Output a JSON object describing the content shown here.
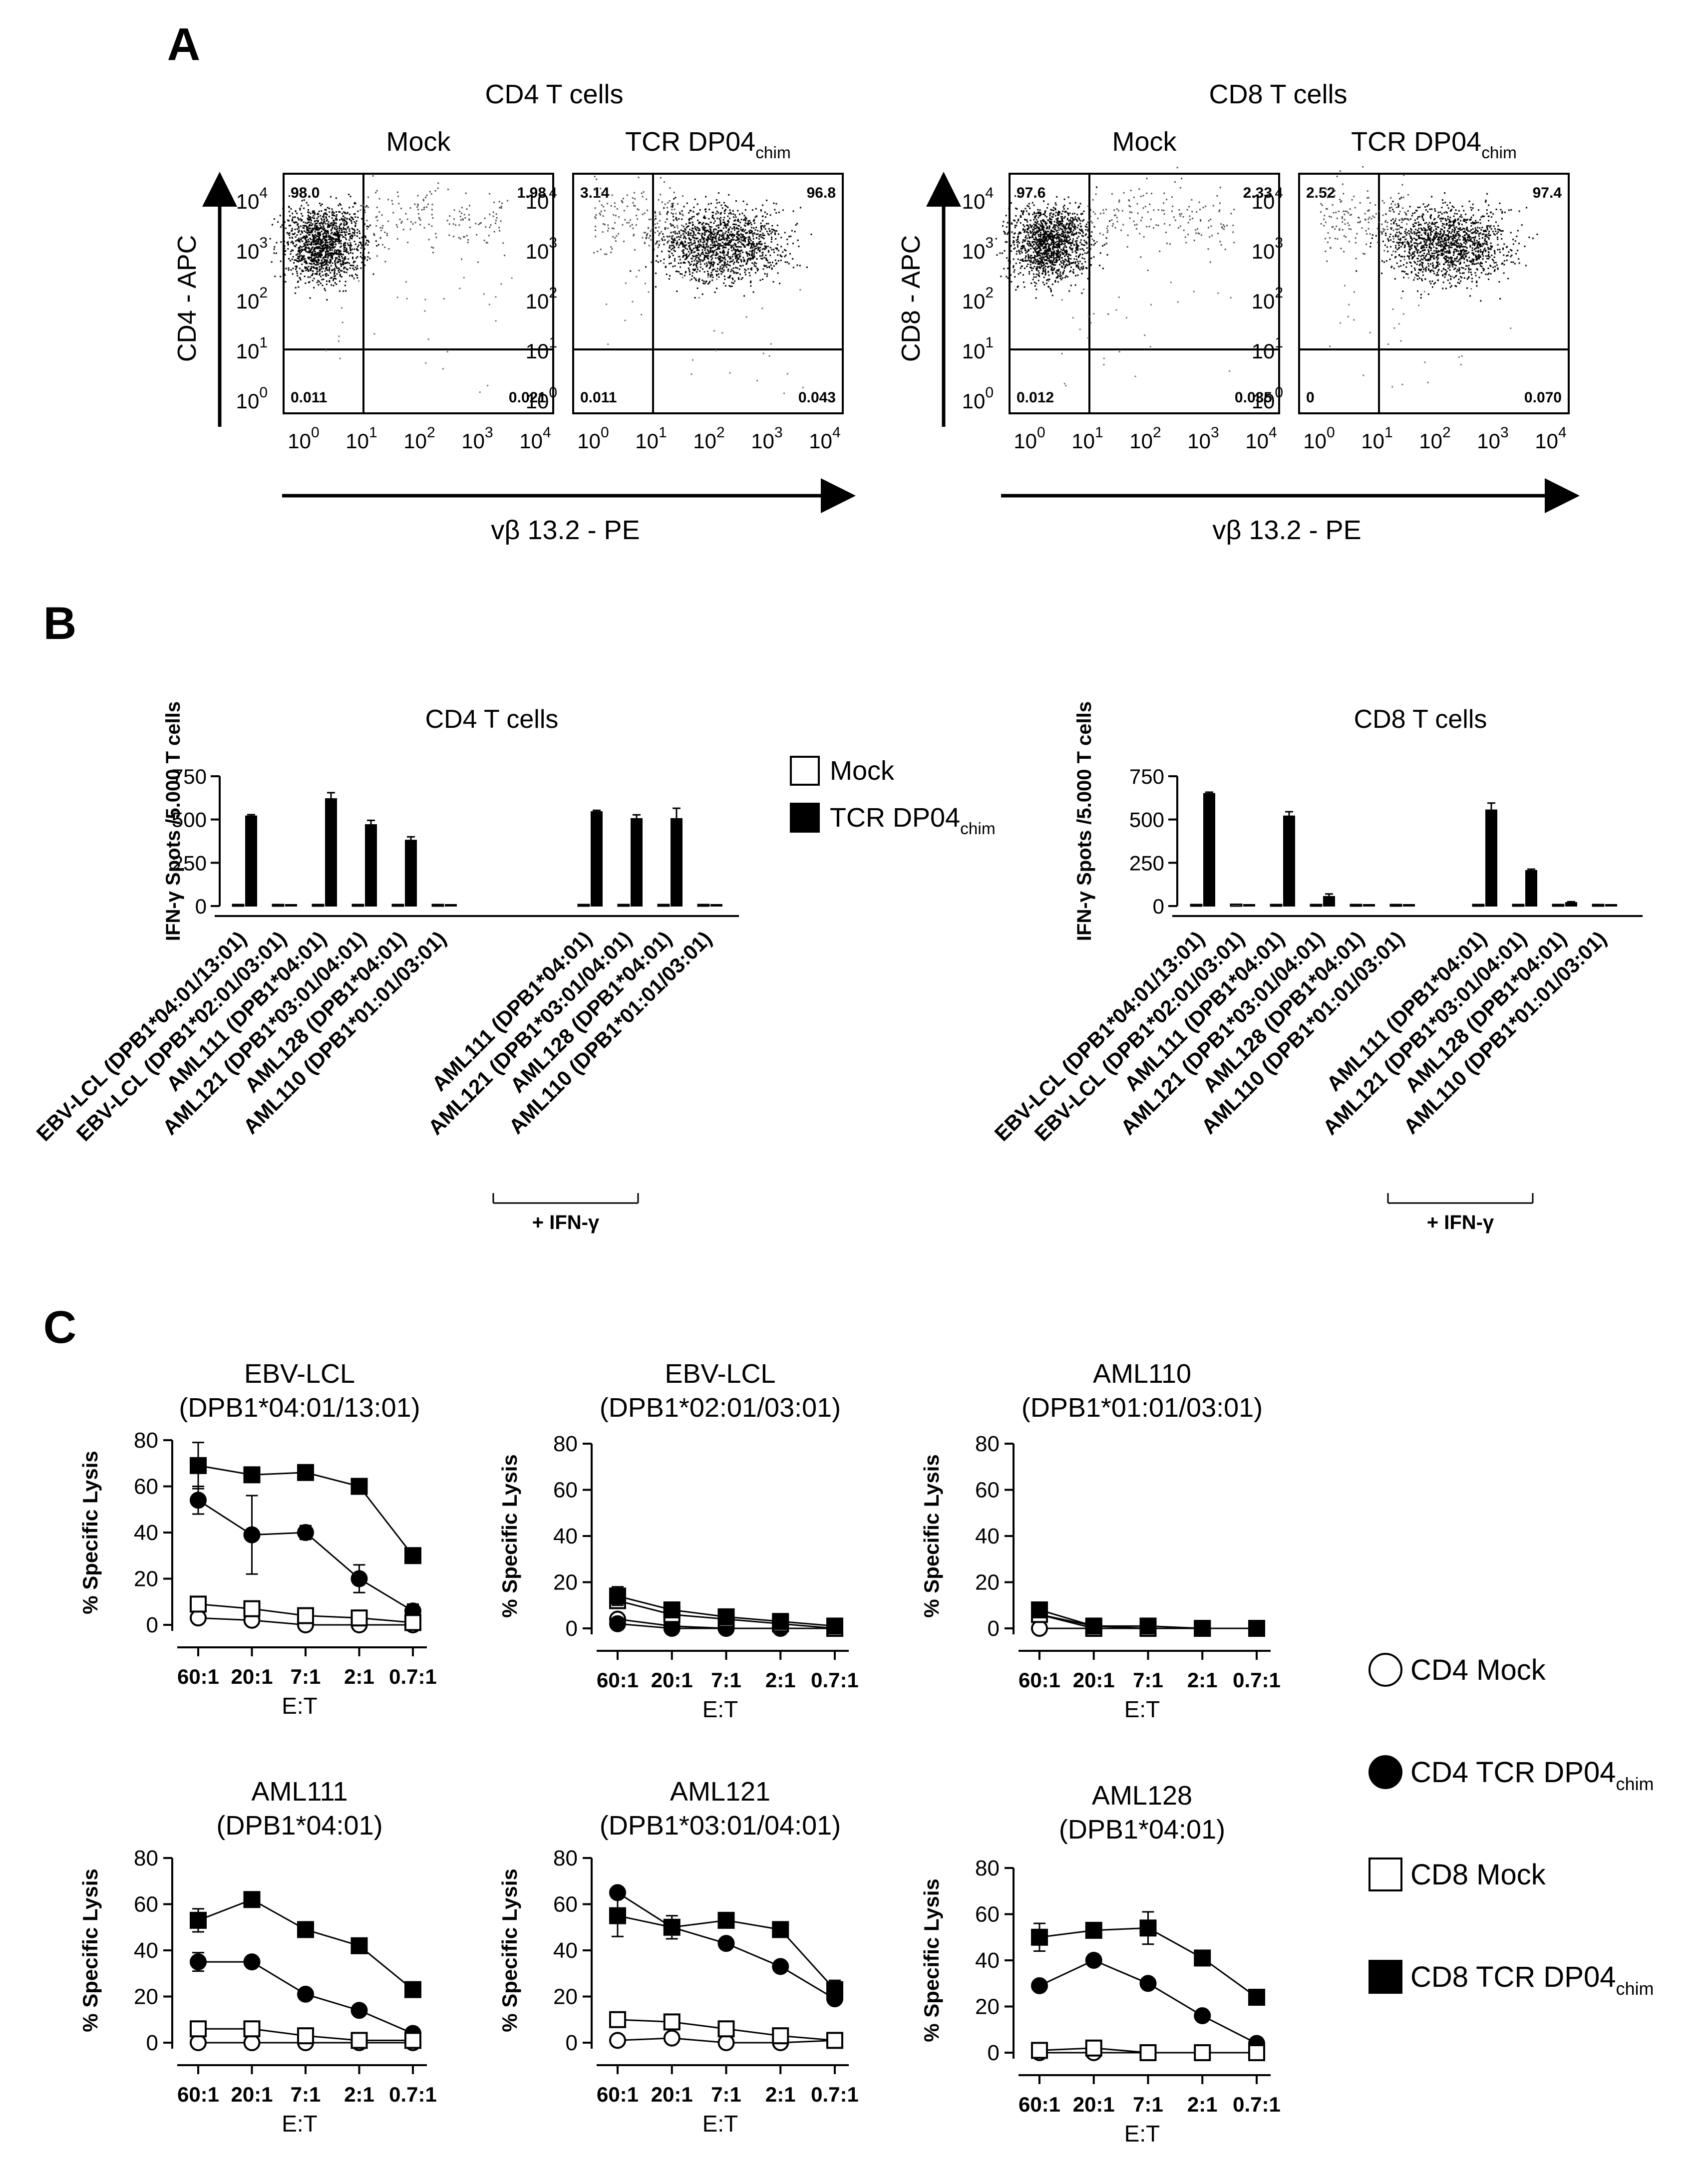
{
  "panels": {
    "A": {
      "label": "A",
      "groups": [
        {
          "title": "CD4 T cells",
          "ylabel": "CD4 - APC",
          "xlabel": "vβ 13.2 - PE",
          "plots": [
            {
              "title": "Mock",
              "sub": "",
              "q": [
                "98.0",
                "1.98",
                "0.011",
                "0.021"
              ],
              "cluster": "left"
            },
            {
              "title": "TCR  DP04",
              "sub": "chim",
              "q": [
                "3.14",
                "96.8",
                "0.011",
                "0.043"
              ],
              "cluster": "right"
            }
          ]
        },
        {
          "title": "CD8 T cells",
          "ylabel": "CD8 - APC",
          "xlabel": "vβ 13.2 - PE",
          "plots": [
            {
              "title": "Mock",
              "sub": "",
              "q": [
                "97.6",
                "2.33",
                "0.012",
                "0.035"
              ],
              "cluster": "left"
            },
            {
              "title": "TCR  DP04",
              "sub": "chim",
              "q": [
                "2.52",
                "97.4",
                "0",
                "0.070"
              ],
              "cluster": "right"
            }
          ]
        }
      ],
      "yticks": [
        "10",
        "10",
        "10",
        "10",
        "10"
      ],
      "yexps": [
        "4",
        "3",
        "2",
        "1",
        "0"
      ],
      "xticks": [
        "10",
        "10",
        "10",
        "10",
        "10"
      ],
      "xexps": [
        "0",
        "1",
        "2",
        "3",
        "4"
      ]
    },
    "B": {
      "label": "B",
      "legend": {
        "mock": "Mock",
        "tcr": "TCR  DP04",
        "tcr_sub": "chim"
      },
      "bracket_label": "+ IFN-γ"
    },
    "C": {
      "label": "C",
      "legend": [
        {
          "text": "CD4 Mock",
          "sub": "",
          "marker": "circle-open"
        },
        {
          "text": "CD4 TCR  DP04",
          "sub": "chim",
          "marker": "circle-filled"
        },
        {
          "text": "CD8 Mock",
          "sub": "",
          "marker": "square-open"
        },
        {
          "text": "CD8 TCR  DP04",
          "sub": "chim",
          "marker": "square-filled"
        }
      ]
    }
  },
  "chart_data": [
    {
      "type": "bar",
      "title": "CD4 T cells",
      "ylabel": "IFN-γ Spots /5.000 T cells",
      "ylim": [
        0,
        750
      ],
      "yticks": [
        0,
        250,
        500,
        750
      ],
      "categories": [
        "EBV-LCL (DPB1*04:01/13:01)",
        "EBV-LCL (DPB1*02:01/03:01)",
        "AML111 (DPB1*04:01)",
        "AML121 (DPB1*03:01/04:01)",
        "AML128 (DPB1*04:01)",
        "AML110 (DPB1*01:01/03:01)",
        "AML111 (DPB1*04:01)",
        "AML121 (DPB1*03:01/04:01)",
        "AML128 (DPB1*04:01)",
        "AML110 (DPB1*01:01/03:01)"
      ],
      "group_split": 6,
      "series": [
        {
          "name": "Mock",
          "values": [
            5,
            2,
            5,
            2,
            3,
            2,
            2,
            3,
            3,
            2
          ]
        },
        {
          "name": "TCR DP04chim",
          "values": [
            520,
            0,
            620,
            470,
            380,
            0,
            545,
            505,
            505,
            0
          ],
          "errors": [
            8,
            0,
            35,
            25,
            20,
            0,
            8,
            22,
            60,
            0
          ]
        }
      ]
    },
    {
      "type": "bar",
      "title": "CD8 T cells",
      "ylabel": "IFN-γ Spots /5.000 T cells",
      "ylim": [
        0,
        750
      ],
      "yticks": [
        0,
        250,
        500,
        750
      ],
      "categories": [
        "EBV-LCL (DPB1*04:01/13:01)",
        "EBV-LCL (DPB1*02:01/03:01)",
        "AML111 (DPB1*04:01)",
        "AML121 (DPB1*03:01/04:01)",
        "AML128 (DPB1*04:01)",
        "AML110 (DPB1*01:01/03:01)",
        "AML111 (DPB1*04:01)",
        "AML121 (DPB1*03:01/04:01)",
        "AML128 (DPB1*04:01)",
        "AML110 (DPB1*01:01/03:01)"
      ],
      "group_split": 6,
      "series": [
        {
          "name": "Mock",
          "values": [
            5,
            10,
            3,
            2,
            2,
            2,
            3,
            3,
            2,
            2
          ]
        },
        {
          "name": "TCR DP04chim",
          "values": [
            650,
            5,
            520,
            55,
            2,
            2,
            555,
            205,
            20,
            0
          ],
          "errors": [
            8,
            0,
            25,
            15,
            0,
            0,
            40,
            8,
            5,
            0
          ]
        }
      ]
    },
    {
      "type": "line",
      "title": "EBV-LCL",
      "subtitle": "(DPB1*04:01/13:01)",
      "xlabel": "E:T",
      "ylabel": "% Specific Lysis",
      "categories": [
        "60:1",
        "20:1",
        "7:1",
        "2:1",
        "0.7:1"
      ],
      "ylim": [
        0,
        80
      ],
      "yticks": [
        0,
        20,
        40,
        60,
        80
      ],
      "series": [
        {
          "name": "CD4 Mock",
          "values": [
            3,
            2,
            0,
            0,
            0
          ],
          "errors": [
            0,
            0,
            0,
            0,
            0
          ]
        },
        {
          "name": "CD4 TCR DP04chim",
          "values": [
            54,
            39,
            40,
            20,
            6
          ],
          "errors": [
            6,
            17,
            3,
            6,
            3
          ]
        },
        {
          "name": "CD8 Mock",
          "values": [
            9,
            7,
            4,
            3,
            1
          ],
          "errors": [
            0,
            0,
            0,
            0,
            0
          ]
        },
        {
          "name": "CD8 TCR DP04chim",
          "values": [
            69,
            65,
            66,
            60,
            30
          ],
          "errors": [
            10,
            0,
            0,
            0,
            0
          ]
        }
      ]
    },
    {
      "type": "line",
      "title": "EBV-LCL",
      "subtitle": "(DPB1*02:01/03:01)",
      "xlabel": "E:T",
      "ylabel": "% Specific Lysis",
      "categories": [
        "60:1",
        "20:1",
        "7:1",
        "2:1",
        "0.7:1"
      ],
      "ylim": [
        0,
        80
      ],
      "yticks": [
        0,
        20,
        40,
        60,
        80
      ],
      "series": [
        {
          "name": "CD4 Mock",
          "values": [
            4,
            1,
            0,
            0,
            0
          ],
          "errors": [
            0,
            0,
            0,
            0,
            0
          ]
        },
        {
          "name": "CD4 TCR DP04chim",
          "values": [
            2,
            0,
            0,
            0,
            0
          ],
          "errors": [
            0,
            0,
            0,
            0,
            0
          ]
        },
        {
          "name": "CD8 Mock",
          "values": [
            12,
            6,
            4,
            2,
            0
          ],
          "errors": [
            3,
            0,
            0,
            0,
            0
          ]
        },
        {
          "name": "CD8 TCR DP04chim",
          "values": [
            14,
            8,
            5,
            3,
            1
          ],
          "errors": [
            4,
            0,
            0,
            0,
            0
          ]
        }
      ]
    },
    {
      "type": "line",
      "title": "AML110",
      "subtitle": "(DPB1*01:01/03:01)",
      "xlabel": "E:T",
      "ylabel": "% Specific Lysis",
      "categories": [
        "60:1",
        "20:1",
        "7:1",
        "2:1",
        "0.7:1"
      ],
      "ylim": [
        0,
        80
      ],
      "yticks": [
        0,
        20,
        40,
        60,
        80
      ],
      "series": [
        {
          "name": "CD4 Mock",
          "values": [
            0,
            0,
            0,
            0,
            0
          ],
          "errors": [
            0,
            0,
            0,
            0,
            0
          ]
        },
        {
          "name": "CD4 TCR DP04chim",
          "values": [
            6,
            1,
            0,
            0,
            0
          ],
          "errors": [
            0,
            0,
            0,
            0,
            0
          ]
        },
        {
          "name": "CD8 Mock",
          "values": [
            6,
            0,
            0,
            0,
            0
          ],
          "errors": [
            0,
            0,
            0,
            0,
            0
          ]
        },
        {
          "name": "CD8 TCR DP04chim",
          "values": [
            8,
            1,
            1,
            0,
            0
          ],
          "errors": [
            0,
            0,
            0,
            0,
            0
          ]
        }
      ]
    },
    {
      "type": "line",
      "title": "AML111",
      "subtitle": "(DPB1*04:01)",
      "xlabel": "E:T",
      "ylabel": "% Specific Lysis",
      "categories": [
        "60:1",
        "20:1",
        "7:1",
        "2:1",
        "0.7:1"
      ],
      "ylim": [
        0,
        80
      ],
      "yticks": [
        0,
        20,
        40,
        60,
        80
      ],
      "series": [
        {
          "name": "CD4 Mock",
          "values": [
            0,
            0,
            0,
            0,
            0
          ],
          "errors": [
            0,
            0,
            0,
            0,
            0
          ]
        },
        {
          "name": "CD4 TCR DP04chim",
          "values": [
            35,
            35,
            21,
            14,
            4
          ],
          "errors": [
            4,
            0,
            0,
            0,
            0
          ]
        },
        {
          "name": "CD8 Mock",
          "values": [
            6,
            6,
            3,
            1,
            1
          ],
          "errors": [
            2,
            0,
            0,
            0,
            0
          ]
        },
        {
          "name": "CD8 TCR DP04chim",
          "values": [
            53,
            62,
            49,
            42,
            23
          ],
          "errors": [
            5,
            3,
            0,
            0,
            0
          ]
        }
      ]
    },
    {
      "type": "line",
      "title": "AML121",
      "subtitle": "(DPB1*03:01/04:01)",
      "xlabel": "E:T",
      "ylabel": "% Specific Lysis",
      "categories": [
        "60:1",
        "20:1",
        "7:1",
        "2:1",
        "0.7:1"
      ],
      "ylim": [
        0,
        80
      ],
      "yticks": [
        0,
        20,
        40,
        60,
        80
      ],
      "series": [
        {
          "name": "CD4 Mock",
          "values": [
            1,
            2,
            0,
            0,
            1
          ],
          "errors": [
            0,
            0,
            0,
            0,
            0
          ]
        },
        {
          "name": "CD4 TCR DP04chim",
          "values": [
            65,
            50,
            43,
            33,
            19
          ],
          "errors": [
            0,
            0,
            0,
            0,
            0
          ]
        },
        {
          "name": "CD8 Mock",
          "values": [
            10,
            9,
            6,
            3,
            1
          ],
          "errors": [
            0,
            0,
            0,
            0,
            0
          ]
        },
        {
          "name": "CD8 TCR DP04chim",
          "values": [
            55,
            50,
            53,
            49,
            23
          ],
          "errors": [
            9,
            5,
            0,
            0,
            4
          ]
        }
      ]
    },
    {
      "type": "line",
      "title": "AML128",
      "subtitle": "(DPB1*04:01)",
      "xlabel": "E:T",
      "ylabel": "% Specific Lysis",
      "categories": [
        "60:1",
        "20:1",
        "7:1",
        "2:1",
        "0.7:1"
      ],
      "ylim": [
        0,
        80
      ],
      "yticks": [
        0,
        20,
        40,
        60,
        80
      ],
      "series": [
        {
          "name": "CD4 Mock",
          "values": [
            0,
            0,
            0,
            0,
            0
          ],
          "errors": [
            0,
            0,
            0,
            0,
            0
          ]
        },
        {
          "name": "CD4 TCR DP04chim",
          "values": [
            29,
            40,
            30,
            16,
            4
          ],
          "errors": [
            0,
            0,
            0,
            0,
            0
          ]
        },
        {
          "name": "CD8 Mock",
          "values": [
            1,
            2,
            0,
            0,
            0
          ],
          "errors": [
            0,
            0,
            0,
            0,
            0
          ]
        },
        {
          "name": "CD8 TCR DP04chim",
          "values": [
            50,
            53,
            54,
            41,
            24
          ],
          "errors": [
            6,
            3,
            7,
            0,
            3
          ]
        }
      ]
    }
  ]
}
